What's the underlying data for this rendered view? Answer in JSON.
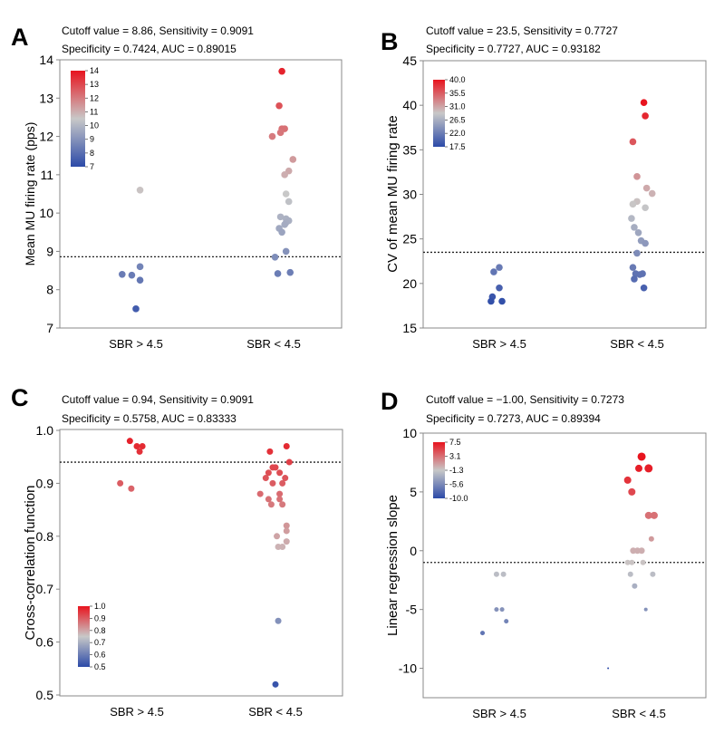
{
  "colors": {
    "low": "#2c4aa8",
    "mid": "#c8c8c8",
    "high": "#e8141e",
    "cutoff_line": "#222222",
    "axes": "#888888"
  },
  "chart_data": [
    {
      "panel": "A",
      "type": "scatter",
      "stats_line1": "Cutoff value = 8.86, Sensitivity = 0.9091",
      "stats_line2": "Specificity = 0.7424, AUC = 0.89015",
      "ylabel": "Mean MU firing rate (pps)",
      "categories": [
        "SBR > 4.5",
        "SBR < 4.5"
      ],
      "ylim": [
        7,
        14
      ],
      "yticks": [
        "7",
        "8",
        "9",
        "10",
        "11",
        "12",
        "13",
        "14"
      ],
      "cutoff": 8.86,
      "colorbar": {
        "ticks": [
          "14",
          "13",
          "12",
          "11",
          "10",
          "9",
          "8",
          "7"
        ],
        "min": 7,
        "max": 14,
        "placement": "top-left"
      },
      "points": [
        {
          "cat": 0,
          "dx": -0.1,
          "y": 8.4
        },
        {
          "cat": 0,
          "dx": -0.03,
          "y": 8.38
        },
        {
          "cat": 0,
          "dx": 0.03,
          "y": 8.6
        },
        {
          "cat": 0,
          "dx": 0.03,
          "y": 8.25
        },
        {
          "cat": 0,
          "dx": 0.0,
          "y": 7.5
        },
        {
          "cat": 0,
          "dx": 0.03,
          "y": 10.6
        },
        {
          "cat": 1,
          "dx": 0.06,
          "y": 13.7
        },
        {
          "cat": 1,
          "dx": 0.04,
          "y": 12.8
        },
        {
          "cat": 1,
          "dx": 0.06,
          "y": 12.2
        },
        {
          "cat": 1,
          "dx": 0.08,
          "y": 12.2
        },
        {
          "cat": 1,
          "dx": 0.05,
          "y": 12.1
        },
        {
          "cat": 1,
          "dx": -0.01,
          "y": 12.0
        },
        {
          "cat": 1,
          "dx": 0.14,
          "y": 11.4
        },
        {
          "cat": 1,
          "dx": 0.11,
          "y": 11.1
        },
        {
          "cat": 1,
          "dx": 0.08,
          "y": 11.0
        },
        {
          "cat": 1,
          "dx": 0.09,
          "y": 10.5
        },
        {
          "cat": 1,
          "dx": 0.11,
          "y": 10.3
        },
        {
          "cat": 1,
          "dx": 0.05,
          "y": 9.9
        },
        {
          "cat": 1,
          "dx": 0.09,
          "y": 9.85
        },
        {
          "cat": 1,
          "dx": 0.11,
          "y": 9.8
        },
        {
          "cat": 1,
          "dx": 0.09,
          "y": 9.75
        },
        {
          "cat": 1,
          "dx": 0.08,
          "y": 9.7
        },
        {
          "cat": 1,
          "dx": 0.04,
          "y": 9.6
        },
        {
          "cat": 1,
          "dx": 0.06,
          "y": 9.5
        },
        {
          "cat": 1,
          "dx": 0.09,
          "y": 9.0
        },
        {
          "cat": 1,
          "dx": 0.01,
          "y": 8.85
        },
        {
          "cat": 1,
          "dx": 0.03,
          "y": 8.42
        },
        {
          "cat": 1,
          "dx": 0.12,
          "y": 8.45
        }
      ]
    },
    {
      "panel": "B",
      "type": "scatter",
      "stats_line1": "Cutoff value = 23.5, Sensitivity = 0.7727",
      "stats_line2": "Specificity = 0.7727, AUC = 0.93182",
      "ylabel": "CV of mean MU firing rate",
      "categories": [
        "SBR > 4.5",
        "SBR < 4.5"
      ],
      "ylim": [
        15,
        45
      ],
      "yticks": [
        "15",
        "20",
        "25",
        "30",
        "35",
        "40",
        "45"
      ],
      "cutoff": 23.5,
      "colorbar": {
        "ticks": [
          "40.0",
          "35.5",
          "31.0",
          "26.5",
          "22.0",
          "17.5"
        ],
        "min": 17.5,
        "max": 40,
        "placement": "top-left"
      },
      "points": [
        {
          "cat": 0,
          "dx": 0.0,
          "y": 21.8
        },
        {
          "cat": 0,
          "dx": -0.04,
          "y": 21.3
        },
        {
          "cat": 0,
          "dx": 0.0,
          "y": 19.5
        },
        {
          "cat": 0,
          "dx": -0.05,
          "y": 18.5
        },
        {
          "cat": 0,
          "dx": -0.06,
          "y": 18.0
        },
        {
          "cat": 0,
          "dx": 0.02,
          "y": 18.0
        },
        {
          "cat": 1,
          "dx": 0.05,
          "y": 40.3
        },
        {
          "cat": 1,
          "dx": 0.06,
          "y": 38.8
        },
        {
          "cat": 1,
          "dx": -0.03,
          "y": 35.9
        },
        {
          "cat": 1,
          "dx": 0.0,
          "y": 32.0
        },
        {
          "cat": 1,
          "dx": 0.07,
          "y": 30.7
        },
        {
          "cat": 1,
          "dx": 0.11,
          "y": 30.1
        },
        {
          "cat": 1,
          "dx": 0.0,
          "y": 29.2
        },
        {
          "cat": 1,
          "dx": -0.03,
          "y": 28.9
        },
        {
          "cat": 1,
          "dx": 0.06,
          "y": 28.5
        },
        {
          "cat": 1,
          "dx": -0.04,
          "y": 27.3
        },
        {
          "cat": 1,
          "dx": -0.02,
          "y": 26.3
        },
        {
          "cat": 1,
          "dx": 0.01,
          "y": 25.7
        },
        {
          "cat": 1,
          "dx": 0.03,
          "y": 24.8
        },
        {
          "cat": 1,
          "dx": 0.06,
          "y": 24.5
        },
        {
          "cat": 1,
          "dx": 0.0,
          "y": 23.4
        },
        {
          "cat": 1,
          "dx": -0.03,
          "y": 21.8
        },
        {
          "cat": 1,
          "dx": -0.01,
          "y": 21.1
        },
        {
          "cat": 1,
          "dx": 0.02,
          "y": 21.0
        },
        {
          "cat": 1,
          "dx": 0.04,
          "y": 21.1
        },
        {
          "cat": 1,
          "dx": -0.02,
          "y": 20.5
        },
        {
          "cat": 1,
          "dx": 0.05,
          "y": 19.5
        }
      ]
    },
    {
      "panel": "C",
      "type": "scatter",
      "stats_line1": "Cutoff value = 0.94, Sensitivity = 0.9091",
      "stats_line2": "Specificity = 0.5758, AUC = 0.83333",
      "ylabel": "Cross-correlation function",
      "categories": [
        "SBR > 4.5",
        "SBR < 4.5"
      ],
      "ylim": [
        0.5,
        1.0
      ],
      "yticks": [
        "0.5",
        "0.6",
        "0.7",
        "0.8",
        "0.9",
        "1.0"
      ],
      "cutoff": 0.94,
      "colorbar": {
        "ticks": [
          "1.0",
          "0.9",
          "0.8",
          "0.7",
          "0.6",
          "0.5"
        ],
        "min": 0.5,
        "max": 1.0,
        "placement": "bottom-left"
      },
      "points": [
        {
          "cat": 0,
          "dx": -0.05,
          "y": 0.98
        },
        {
          "cat": 0,
          "dx": 0.0,
          "y": 0.97
        },
        {
          "cat": 0,
          "dx": 0.04,
          "y": 0.97
        },
        {
          "cat": 0,
          "dx": 0.02,
          "y": 0.96
        },
        {
          "cat": 0,
          "dx": -0.12,
          "y": 0.9
        },
        {
          "cat": 0,
          "dx": -0.04,
          "y": 0.89
        },
        {
          "cat": 1,
          "dx": 0.08,
          "y": 0.97
        },
        {
          "cat": 1,
          "dx": -0.04,
          "y": 0.96
        },
        {
          "cat": 1,
          "dx": 0.1,
          "y": 0.94
        },
        {
          "cat": 1,
          "dx": -0.02,
          "y": 0.93
        },
        {
          "cat": 1,
          "dx": 0.0,
          "y": 0.93
        },
        {
          "cat": 1,
          "dx": -0.05,
          "y": 0.92
        },
        {
          "cat": 1,
          "dx": 0.03,
          "y": 0.92
        },
        {
          "cat": 1,
          "dx": -0.07,
          "y": 0.91
        },
        {
          "cat": 1,
          "dx": 0.07,
          "y": 0.91
        },
        {
          "cat": 1,
          "dx": -0.02,
          "y": 0.9
        },
        {
          "cat": 1,
          "dx": 0.05,
          "y": 0.9
        },
        {
          "cat": 1,
          "dx": -0.11,
          "y": 0.88
        },
        {
          "cat": 1,
          "dx": 0.03,
          "y": 0.88
        },
        {
          "cat": 1,
          "dx": -0.05,
          "y": 0.87
        },
        {
          "cat": 1,
          "dx": 0.03,
          "y": 0.87
        },
        {
          "cat": 1,
          "dx": -0.03,
          "y": 0.86
        },
        {
          "cat": 1,
          "dx": 0.05,
          "y": 0.86
        },
        {
          "cat": 1,
          "dx": 0.08,
          "y": 0.82
        },
        {
          "cat": 1,
          "dx": 0.08,
          "y": 0.81
        },
        {
          "cat": 1,
          "dx": 0.01,
          "y": 0.8
        },
        {
          "cat": 1,
          "dx": 0.08,
          "y": 0.79
        },
        {
          "cat": 1,
          "dx": 0.02,
          "y": 0.78
        },
        {
          "cat": 1,
          "dx": 0.05,
          "y": 0.78
        },
        {
          "cat": 1,
          "dx": 0.02,
          "y": 0.64
        },
        {
          "cat": 1,
          "dx": 0.0,
          "y": 0.52
        }
      ]
    },
    {
      "panel": "D",
      "type": "scatter",
      "stats_line1": "Cutoff value = −1.00, Sensitivity = 0.7273",
      "stats_line2": "Specificity = 0.7273, AUC = 0.89394",
      "ylabel": "Linear regression slope",
      "categories": [
        "SBR > 4.5",
        "SBR < 4.5"
      ],
      "ylim": [
        -12.5,
        10
      ],
      "yticks": [
        "-10",
        "-5",
        "0",
        "5",
        "10"
      ],
      "ytick_values": [
        -10,
        -5,
        0,
        5,
        10
      ],
      "cutoff": -1.0,
      "colorbar": {
        "ticks": [
          "7.5",
          "3.1",
          "-1.3",
          "-5.6",
          "-10.0"
        ],
        "min": -10,
        "max": 7.5,
        "placement": "top-left"
      },
      "points": [
        {
          "cat": 0,
          "dx": -0.02,
          "y": -2,
          "r": 3
        },
        {
          "cat": 0,
          "dx": 0.03,
          "y": -2,
          "r": 3
        },
        {
          "cat": 0,
          "dx": -0.02,
          "y": -5,
          "r": 2.5
        },
        {
          "cat": 0,
          "dx": 0.02,
          "y": -5,
          "r": 2.5
        },
        {
          "cat": 0,
          "dx": 0.05,
          "y": -6,
          "r": 2.5
        },
        {
          "cat": 0,
          "dx": -0.12,
          "y": -7,
          "r": 2.5
        },
        {
          "cat": 1,
          "dx": 0.02,
          "y": 8,
          "r": 4.5
        },
        {
          "cat": 1,
          "dx": -0.08,
          "y": 6,
          "r": 4
        },
        {
          "cat": 1,
          "dx": 0.0,
          "y": 7,
          "r": 4
        },
        {
          "cat": 1,
          "dx": 0.07,
          "y": 7,
          "r": 4.5
        },
        {
          "cat": 1,
          "dx": -0.05,
          "y": 5,
          "r": 4
        },
        {
          "cat": 1,
          "dx": 0.07,
          "y": 3,
          "r": 4
        },
        {
          "cat": 1,
          "dx": 0.11,
          "y": 3,
          "r": 4
        },
        {
          "cat": 1,
          "dx": 0.09,
          "y": 1,
          "r": 3
        },
        {
          "cat": 1,
          "dx": -0.04,
          "y": 0,
          "r": 3.5
        },
        {
          "cat": 1,
          "dx": -0.01,
          "y": 0,
          "r": 3.5
        },
        {
          "cat": 1,
          "dx": 0.02,
          "y": 0,
          "r": 3.5
        },
        {
          "cat": 1,
          "dx": -0.08,
          "y": -1,
          "r": 3
        },
        {
          "cat": 1,
          "dx": -0.05,
          "y": -1,
          "r": 3
        },
        {
          "cat": 1,
          "dx": 0.03,
          "y": -1,
          "r": 3
        },
        {
          "cat": 1,
          "dx": -0.06,
          "y": -2,
          "r": 3
        },
        {
          "cat": 1,
          "dx": 0.1,
          "y": -2,
          "r": 3
        },
        {
          "cat": 1,
          "dx": -0.03,
          "y": -3,
          "r": 3
        },
        {
          "cat": 1,
          "dx": 0.05,
          "y": -5,
          "r": 2
        },
        {
          "cat": 1,
          "dx": -0.22,
          "y": -10,
          "r": 1
        }
      ]
    }
  ]
}
